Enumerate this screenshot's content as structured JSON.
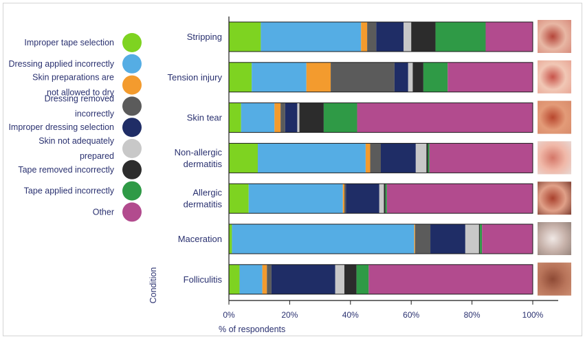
{
  "chart_data": {
    "type": "bar",
    "orientation": "horizontal",
    "stacked": true,
    "xlabel": "% of respondents",
    "ylabel": "Condition",
    "xlim": [
      0,
      100
    ],
    "xticks": [
      "0%",
      "20%",
      "40%",
      "60%",
      "80%",
      "100%"
    ],
    "legend_position": "left",
    "grid": false,
    "categories": [
      "Stripping",
      "Tension injury",
      "Skin tear",
      "Non-allergic dermatitis",
      "Allergic dermatitis",
      "Maceration",
      "Folliculitis"
    ],
    "series": [
      {
        "name": "Improper tape selection",
        "color": "#7ed321",
        "values": [
          10.5,
          7.5,
          4.0,
          9.5,
          6.5,
          1.0,
          3.5
        ]
      },
      {
        "name": "Dressing applied incorrectly",
        "color": "#55ade4",
        "values": [
          33.0,
          18.0,
          11.0,
          35.5,
          31.0,
          60.0,
          7.5
        ]
      },
      {
        "name": "Skin preparations are not allowed to dry",
        "color": "#f39b2e",
        "values": [
          2.0,
          8.0,
          2.0,
          1.5,
          0.5,
          0.3,
          1.5
        ]
      },
      {
        "name": "Dressing removed incorrectly",
        "color": "#5b5b5b",
        "values": [
          3.0,
          21.0,
          1.5,
          3.5,
          0.5,
          5.0,
          1.5
        ]
      },
      {
        "name": "Improper dressing selection",
        "color": "#1f2d66",
        "values": [
          9.0,
          4.5,
          4.0,
          11.5,
          11.0,
          11.5,
          21.0
        ]
      },
      {
        "name": "Skin not adequately prepared",
        "color": "#c8c8c8",
        "values": [
          2.5,
          1.5,
          0.7,
          3.5,
          1.5,
          4.5,
          3.0
        ]
      },
      {
        "name": "Tape removed incorrectly",
        "color": "#2c2c2c",
        "values": [
          8.0,
          3.5,
          8.0,
          0.5,
          0.5,
          0.3,
          4.0
        ]
      },
      {
        "name": "Tape applied incorrectly",
        "color": "#2f9a46",
        "values": [
          16.5,
          8.0,
          11.0,
          0.5,
          0.5,
          0.7,
          4.0
        ]
      },
      {
        "name": "Other",
        "color": "#b24b8e",
        "values": [
          15.5,
          28.0,
          57.8,
          34.0,
          48.0,
          16.7,
          54.0
        ]
      }
    ]
  },
  "legend_lines": [
    [
      "Improper tape selection"
    ],
    [
      "Dressing applied incorrectly"
    ],
    [
      "Skin preparations are",
      "not allowed to dry"
    ],
    [
      "Dressing removed",
      "incorrectly"
    ],
    [
      "Improper dressing selection"
    ],
    [
      "Skin not adequately",
      "prepared"
    ],
    [
      "Tape removed incorrectly"
    ],
    [
      "Tape applied incorrectly"
    ],
    [
      "Other"
    ]
  ],
  "category_lines": [
    [
      "Stripping"
    ],
    [
      "Tension injury"
    ],
    [
      "Skin tear"
    ],
    [
      "Non-allergic",
      "dermatitis"
    ],
    [
      "Allergic",
      "dermatitis"
    ],
    [
      "Maceration"
    ],
    [
      "Folliculitis"
    ]
  ],
  "thumbnails": [
    {
      "name": "stripping-photo",
      "colors": [
        "#e8b7a4",
        "#b5463a",
        "#d99080"
      ]
    },
    {
      "name": "tension-injury-photo",
      "colors": [
        "#f1c7b5",
        "#c8544a",
        "#e9aa99"
      ]
    },
    {
      "name": "skin-tear-photo",
      "colors": [
        "#e39b78",
        "#b8472e",
        "#d98d6c"
      ]
    },
    {
      "name": "non-allergic-dermatitis-photo",
      "colors": [
        "#f0b8a8",
        "#d47768",
        "#e9d4ce"
      ]
    },
    {
      "name": "allergic-dermatitis-photo",
      "colors": [
        "#e0a088",
        "#a9412d",
        "#8a4a3b"
      ]
    },
    {
      "name": "maceration-photo",
      "colors": [
        "#c7b2aa",
        "#f0e8e5",
        "#9c8a82"
      ]
    },
    {
      "name": "folliculitis-photo",
      "colors": [
        "#b8745a",
        "#8e4a35",
        "#c98a6e"
      ]
    }
  ]
}
